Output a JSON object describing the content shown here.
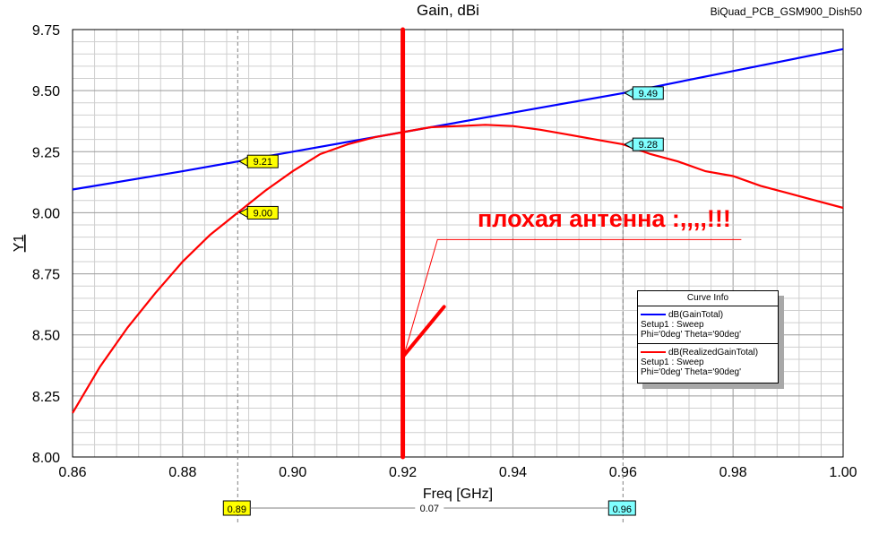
{
  "header": {
    "title": "Gain, dBi",
    "project": "BiQuad_PCB_GSM900_Dish50"
  },
  "chart_data": {
    "type": "line",
    "title": "Gain, dBi",
    "xlabel": "Freq [GHz]",
    "ylabel": "Y1",
    "xlim": [
      0.86,
      1.0
    ],
    "ylim": [
      8.0,
      9.75
    ],
    "x_ticks": [
      "0.86",
      "0.88",
      "0.90",
      "0.92",
      "0.94",
      "0.96",
      "0.98",
      "1.00"
    ],
    "y_ticks": [
      "8.00",
      "8.25",
      "8.50",
      "8.75",
      "9.00",
      "9.25",
      "9.50",
      "9.75"
    ],
    "grid": true,
    "legend_placement": "right",
    "series": [
      {
        "name": "dB(GainTotal)",
        "color": "#0000ff",
        "x": [
          0.86,
          0.88,
          0.89,
          0.9,
          0.92,
          0.94,
          0.96,
          0.98,
          1.0
        ],
        "y": [
          9.095,
          9.17,
          9.21,
          9.25,
          9.33,
          9.41,
          9.49,
          9.58,
          9.67
        ]
      },
      {
        "name": "dB(RealizedGainTotal)",
        "color": "#ff0000",
        "x": [
          0.86,
          0.865,
          0.87,
          0.875,
          0.88,
          0.885,
          0.89,
          0.895,
          0.9,
          0.905,
          0.91,
          0.915,
          0.92,
          0.925,
          0.93,
          0.935,
          0.94,
          0.945,
          0.95,
          0.955,
          0.96,
          0.965,
          0.97,
          0.975,
          0.98,
          0.985,
          0.99,
          0.995,
          1.0
        ],
        "y": [
          8.18,
          8.37,
          8.53,
          8.67,
          8.8,
          8.91,
          9.0,
          9.09,
          9.17,
          9.24,
          9.28,
          9.31,
          9.33,
          9.35,
          9.355,
          9.36,
          9.355,
          9.34,
          9.32,
          9.3,
          9.28,
          9.24,
          9.21,
          9.17,
          9.15,
          9.11,
          9.08,
          9.05,
          9.02
        ]
      }
    ],
    "markers": [
      {
        "x": 0.89,
        "label": "0.89",
        "values": [
          {
            "y": 9.21,
            "label": "9.21"
          },
          {
            "y": 9.0,
            "label": "9.00"
          }
        ]
      },
      {
        "x": 0.96,
        "label": "0.96",
        "values": [
          {
            "y": 9.49,
            "label": "9.49"
          },
          {
            "y": 9.28,
            "label": "9.28"
          }
        ]
      }
    ],
    "delta_label": "0.07",
    "legend": {
      "header": "Curve Info",
      "entries": [
        {
          "name": "dB(GainTotal)",
          "line1": "Setup1 : Sweep",
          "line2": "Phi='0deg' Theta='90deg'",
          "color": "#0000ff"
        },
        {
          "name": "dB(RealizedGainTotal)",
          "line1": "Setup1 : Sweep",
          "line2": "Phi='0deg' Theta='90deg'",
          "color": "#ff0000"
        }
      ]
    },
    "annotation": {
      "text": "плохая антенна :,,,,!!!",
      "color": "#ff0000"
    }
  }
}
